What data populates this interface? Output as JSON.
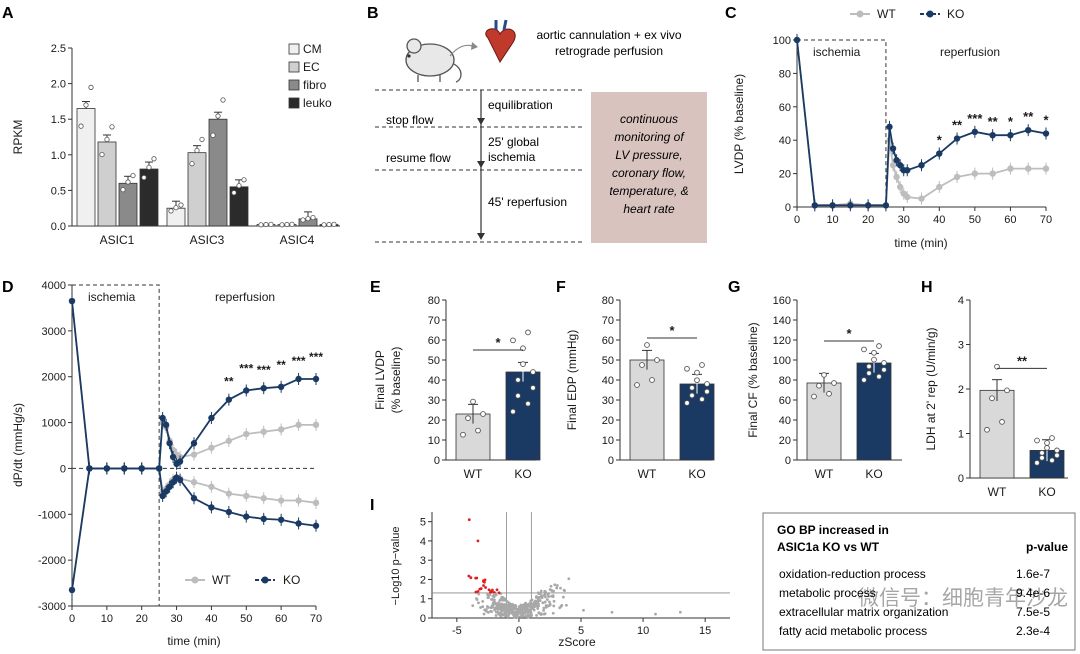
{
  "colors": {
    "wt": "#bdbdbd",
    "ko": "#1a3a63",
    "cm": "#f0f0f0",
    "ec": "#cfcfcf",
    "fibro": "#8a8a8a",
    "leuko": "#2b2b2b",
    "box_fill": "#d8c3bf",
    "red": "#e02020"
  },
  "panel_letters": {
    "a": "A",
    "b": "B",
    "c": "C",
    "d": "D",
    "e": "E",
    "f": "F",
    "g": "G",
    "h": "H",
    "i": "I"
  },
  "panel_b": {
    "title_line1": "aortic cannulation + ex vivo",
    "title_line2": "retrograde perfusion",
    "stop_flow": "stop flow",
    "resume_flow": "resume flow",
    "equilibration": "equilibration",
    "global_line1": "25' global",
    "global_line2": "ischemia",
    "reperfusion": "45' reperfusion",
    "box_line1": "continuous",
    "box_line2": "monitoring of",
    "box_line3": "LV pressure,",
    "box_line4": "coronary flow,",
    "box_line5": "temperature, &",
    "box_line6": "heart rate"
  },
  "chart_data": [
    {
      "panel": "A",
      "type": "bar",
      "ylabel": "RPKM",
      "ylim": [
        0,
        2.5
      ],
      "yticks": [
        "0.0",
        "0.5",
        "1.0",
        "1.5",
        "2.0",
        "2.5"
      ],
      "categories": [
        "ASIC1",
        "ASIC3",
        "ASIC4"
      ],
      "series": [
        {
          "name": "CM",
          "values": [
            1.65,
            0.25,
            0.02
          ]
        },
        {
          "name": "EC",
          "values": [
            1.18,
            1.03,
            0.02
          ]
        },
        {
          "name": "fibro",
          "values": [
            0.6,
            1.5,
            0.1
          ]
        },
        {
          "name": "leuko",
          "values": [
            0.8,
            0.55,
            0.02
          ]
        }
      ]
    },
    {
      "panel": "C",
      "type": "line",
      "xlabel": "time (min)",
      "ylabel": "LVDP (% baseline)",
      "xlim": [
        0,
        70
      ],
      "ylim": [
        0,
        100
      ],
      "xticks": [
        "0",
        "10",
        "20",
        "30",
        "40",
        "50",
        "60",
        "70"
      ],
      "yticks": [
        "0",
        "20",
        "40",
        "60",
        "80",
        "100"
      ],
      "legend": [
        "WT",
        "KO"
      ],
      "annotations": {
        "ischemia": "ischemia",
        "reperfusion": "reperfusion"
      },
      "significance": [
        "*",
        "**",
        "***",
        "**",
        "*",
        "**",
        "*"
      ],
      "x": [
        0,
        5,
        10,
        15,
        20,
        25,
        26,
        27,
        28,
        29,
        30,
        31,
        35,
        40,
        45,
        50,
        55,
        60,
        65,
        70
      ],
      "series": [
        {
          "name": "WT",
          "values": [
            100,
            1,
            1,
            2,
            1,
            1,
            40,
            25,
            18,
            12,
            8,
            6,
            5,
            12,
            18,
            20,
            20,
            23,
            23,
            23
          ]
        },
        {
          "name": "KO",
          "values": [
            100,
            1,
            1,
            1,
            1,
            1,
            48,
            35,
            28,
            25,
            22,
            22,
            25,
            32,
            41,
            45,
            43,
            43,
            46,
            44
          ]
        }
      ]
    },
    {
      "panel": "D",
      "type": "line",
      "xlabel": "time (min)",
      "ylabel": "dP/dt (mmHg/s)",
      "xlim": [
        0,
        70
      ],
      "ylim": [
        -3000,
        4000
      ],
      "xticks": [
        "0",
        "10",
        "20",
        "30",
        "40",
        "50",
        "60",
        "70"
      ],
      "yticks": [
        "-3000",
        "-2000",
        "-1000",
        "0",
        "1000",
        "2000",
        "3000",
        "4000"
      ],
      "legend": [
        "WT",
        "KO"
      ],
      "annotations": {
        "ischemia": "ischemia",
        "reperfusion": "reperfusion"
      },
      "significance": [
        "**",
        "***",
        "***",
        "**",
        "***",
        "***"
      ],
      "x": [
        0,
        5,
        10,
        15,
        20,
        25,
        26,
        27,
        28,
        29,
        30,
        31,
        35,
        40,
        45,
        50,
        55,
        60,
        65,
        70
      ],
      "series": [
        {
          "name": "WT max",
          "values": [
            3650,
            0,
            0,
            0,
            0,
            0,
            1000,
            900,
            600,
            400,
            300,
            250,
            300,
            450,
            600,
            750,
            800,
            850,
            950,
            950
          ]
        },
        {
          "name": "KO max",
          "values": [
            3650,
            0,
            0,
            0,
            0,
            0,
            1100,
            950,
            550,
            250,
            100,
            150,
            550,
            1100,
            1500,
            1700,
            1750,
            1780,
            1950,
            1950
          ]
        },
        {
          "name": "WT min",
          "values": [
            -2650,
            0,
            0,
            0,
            0,
            0,
            -500,
            -450,
            -350,
            -250,
            -200,
            -220,
            -300,
            -400,
            -550,
            -600,
            -650,
            -700,
            -700,
            -750
          ]
        },
        {
          "name": "KO min",
          "values": [
            -2650,
            0,
            0,
            0,
            0,
            0,
            -600,
            -500,
            -400,
            -300,
            -200,
            -250,
            -650,
            -850,
            -950,
            -1050,
            -1100,
            -1120,
            -1200,
            -1250
          ]
        }
      ]
    },
    {
      "panel": "E",
      "type": "bar",
      "ylabel_line1": "Final LVDP",
      "ylabel_line2": "(% baseline)",
      "ylim": [
        0,
        80
      ],
      "yticks": [
        "0",
        "10",
        "20",
        "30",
        "40",
        "50",
        "60",
        "70",
        "80"
      ],
      "categories": [
        "WT",
        "KO"
      ],
      "values": [
        23,
        44
      ],
      "sig": "*"
    },
    {
      "panel": "F",
      "type": "bar",
      "ylabel": "Final EDP (mmHg)",
      "ylim": [
        0,
        80
      ],
      "yticks": [
        "0",
        "10",
        "20",
        "30",
        "40",
        "50",
        "60",
        "70",
        "80"
      ],
      "categories": [
        "WT",
        "KO"
      ],
      "values": [
        50,
        38
      ],
      "sig": "*"
    },
    {
      "panel": "G",
      "type": "bar",
      "ylabel": "Final CF (% baseline)",
      "ylim": [
        0,
        160
      ],
      "yticks": [
        "0",
        "20",
        "40",
        "60",
        "80",
        "100",
        "120",
        "140",
        "160"
      ],
      "categories": [
        "WT",
        "KO"
      ],
      "values": [
        77,
        97
      ],
      "sig": "*"
    },
    {
      "panel": "H",
      "type": "bar",
      "ylabel": "LDH at 2' rep (U/min/g)",
      "ylim": [
        0,
        4
      ],
      "yticks": [
        "0",
        "1",
        "2",
        "3",
        "4"
      ],
      "categories": [
        "WT",
        "KO"
      ],
      "values": [
        1.97,
        0.62
      ],
      "sig": "**"
    },
    {
      "panel": "I",
      "type": "scatter",
      "xlabel": "zScore",
      "ylabel": "−Log10 p−value",
      "xlim": [
        -7,
        17
      ],
      "ylim": [
        0,
        5.5
      ],
      "xticks": [
        "-5",
        "0",
        "5",
        "10",
        "15"
      ],
      "yticks": [
        "0",
        "1",
        "2",
        "3",
        "4",
        "5"
      ]
    }
  ],
  "go_table": {
    "title_line1": "GO BP increased in",
    "title_line2": "ASIC1a KO vs WT",
    "pvalue_header": "p-value",
    "rows": [
      {
        "term": "oxidation-reduction process",
        "p": "1.6e-7"
      },
      {
        "term": "metabolic process",
        "p": "9.4e-6"
      },
      {
        "term": "extracellular matrix organization",
        "p": "7.5e-5"
      },
      {
        "term": "fatty acid metabolic process",
        "p": "2.3e-4"
      }
    ]
  },
  "watermark": "微信号：细胞青年沙龙"
}
